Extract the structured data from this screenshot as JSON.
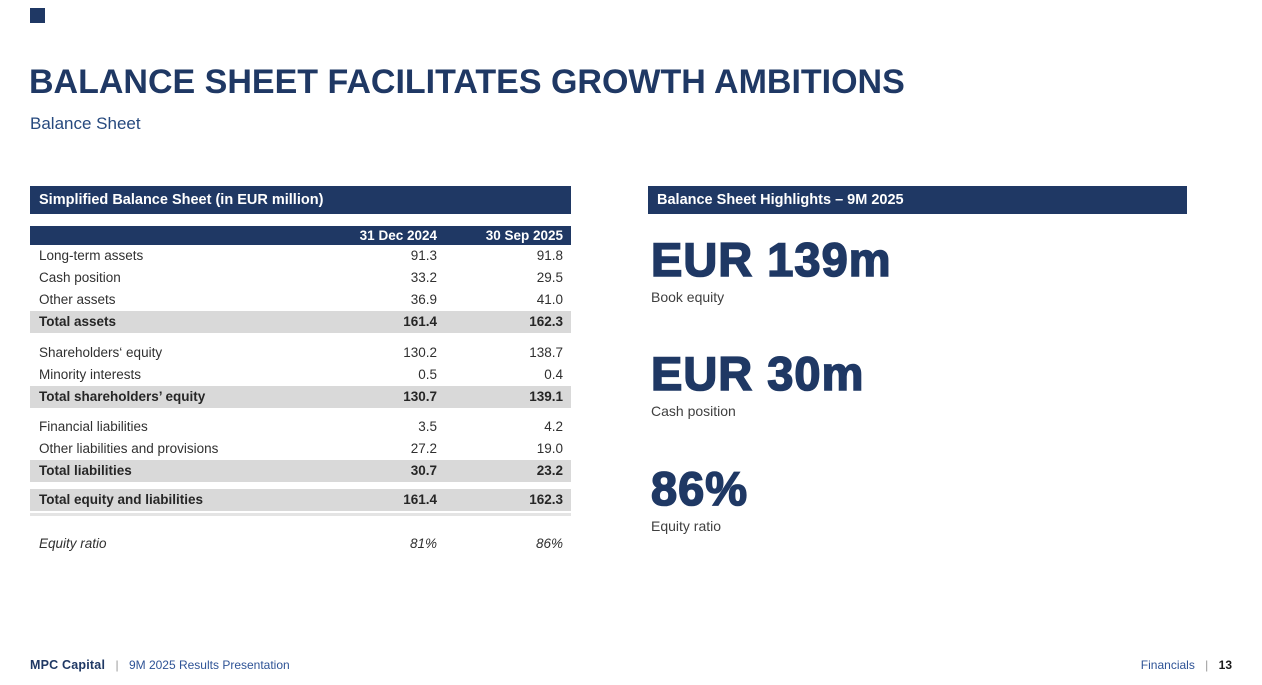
{
  "slide": {
    "title": "BALANCE SHEET FACILITATES GROWTH AMBITIONS",
    "subtitle": "Balance Sheet"
  },
  "colors": {
    "navy": "#1F3864",
    "accent_blue": "#2E5396",
    "total_band_gray": "#D9D9D9"
  },
  "balance_table": {
    "title": "Simplified Balance Sheet (in EUR million)",
    "columns": [
      "31 Dec 2024",
      "30 Sep 2025"
    ],
    "rows": [
      {
        "label": "Long-term assets",
        "v1": "91.3",
        "v2": "91.8"
      },
      {
        "label": "Cash position",
        "v1": "33.2",
        "v2": "29.5"
      },
      {
        "label": "Other assets",
        "v1": "36.9",
        "v2": "41.0"
      },
      {
        "label": "Total assets",
        "v1": "161.4",
        "v2": "162.3"
      },
      {
        "label": "Shareholders‘ equity",
        "v1": "130.2",
        "v2": "138.7"
      },
      {
        "label": "Minority interests",
        "v1": "0.5",
        "v2": "0.4"
      },
      {
        "label": "Total shareholders’ equity",
        "v1": "130.7",
        "v2": "139.1"
      },
      {
        "label": "Financial liabilities",
        "v1": "3.5",
        "v2": "4.2"
      },
      {
        "label": "Other liabilities and provisions",
        "v1": "27.2",
        "v2": "19.0"
      },
      {
        "label": "Total liabilities",
        "v1": "30.7",
        "v2": "23.2"
      },
      {
        "label": "Total equity and liabilities",
        "v1": "161.4",
        "v2": "162.3"
      },
      {
        "label": "Equity ratio",
        "v1": "81%",
        "v2": "86%"
      }
    ]
  },
  "highlights": {
    "title": "Balance Sheet Highlights – 9M 2025",
    "items": [
      {
        "value": "EUR 139m",
        "label": "Book equity"
      },
      {
        "value": "EUR 30m",
        "label": "Cash position"
      },
      {
        "value": "86%",
        "label": "Equity ratio"
      }
    ]
  },
  "footer": {
    "brand": "MPC Capital",
    "separator": "|",
    "presentation": "9M 2025 Results Presentation",
    "section": "Financials",
    "page": "13"
  }
}
